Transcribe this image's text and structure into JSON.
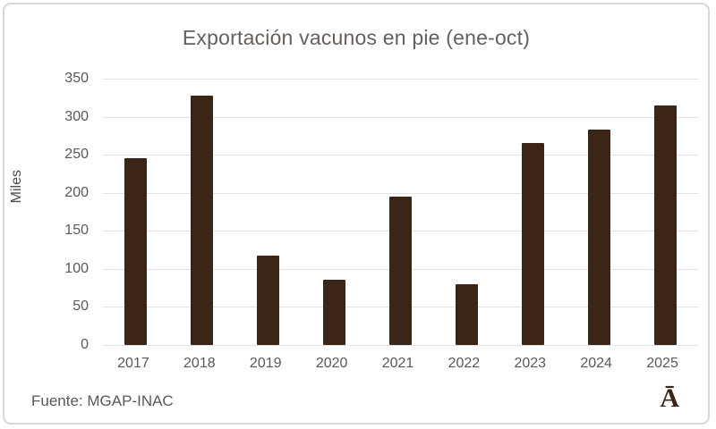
{
  "chart_data": {
    "type": "bar",
    "title": "Exportación vacunos en pie (ene-oct)",
    "ylabel": "Miles",
    "xlabel": "",
    "categories": [
      "2017",
      "2018",
      "2019",
      "2020",
      "2021",
      "2022",
      "2023",
      "2024",
      "2025"
    ],
    "values": [
      246,
      328,
      117,
      86,
      195,
      80,
      265,
      283,
      315
    ],
    "ylim": [
      0,
      350
    ],
    "ytick_step": 50,
    "yticks": [
      0,
      50,
      100,
      150,
      200,
      250,
      300,
      350
    ],
    "grid": true,
    "legend": "none",
    "bar_color": "#3B2516",
    "gridline_color": "#E3E3E3",
    "tick_label_color": "#595959",
    "title_color": "#66605D"
  },
  "footer": {
    "source": "Fuente: MGAP-INAC",
    "logo": "Ā"
  }
}
